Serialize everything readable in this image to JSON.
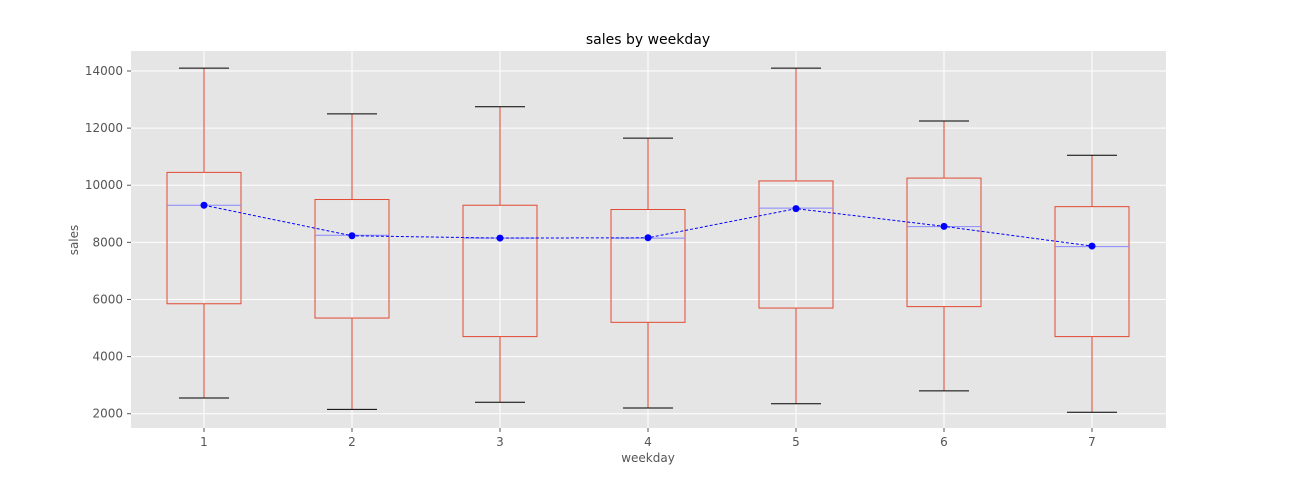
{
  "chart_data": {
    "type": "box",
    "title": "sales by weekday",
    "xlabel": "weekday",
    "ylabel": "sales",
    "categories": [
      "1",
      "2",
      "3",
      "4",
      "5",
      "6",
      "7"
    ],
    "ylim": [
      1500,
      14700
    ],
    "yticks": [
      2000,
      4000,
      6000,
      8000,
      10000,
      12000,
      14000
    ],
    "grid": true,
    "boxes": [
      {
        "category": "1",
        "whislo": 2550,
        "q1": 5850,
        "med": 9300,
        "q3": 10450,
        "whishi": 14100
      },
      {
        "category": "2",
        "whislo": 2150,
        "q1": 5350,
        "med": 8250,
        "q3": 9500,
        "whishi": 12500
      },
      {
        "category": "3",
        "whislo": 2400,
        "q1": 4700,
        "med": 8150,
        "q3": 9300,
        "whishi": 12750
      },
      {
        "category": "4",
        "whislo": 2200,
        "q1": 5200,
        "med": 8150,
        "q3": 9150,
        "whishi": 11650
      },
      {
        "category": "5",
        "whislo": 2350,
        "q1": 5700,
        "med": 9200,
        "q3": 10150,
        "whishi": 14100
      },
      {
        "category": "6",
        "whislo": 2800,
        "q1": 5750,
        "med": 8550,
        "q3": 10250,
        "whishi": 12250
      },
      {
        "category": "7",
        "whislo": 2050,
        "q1": 4700,
        "med": 7850,
        "q3": 9250,
        "whishi": 11050
      }
    ],
    "mean_line": {
      "x": [
        "1",
        "2",
        "3",
        "4",
        "5",
        "6",
        "7"
      ],
      "values": [
        9300,
        8230,
        8150,
        8160,
        9180,
        8560,
        7870
      ]
    },
    "colors": {
      "background": "#e5e5e5",
      "grid": "#ffffff",
      "box": "#e24a33",
      "median": "#8888ff",
      "cap": "#000000",
      "mean": "#0000ff"
    }
  }
}
